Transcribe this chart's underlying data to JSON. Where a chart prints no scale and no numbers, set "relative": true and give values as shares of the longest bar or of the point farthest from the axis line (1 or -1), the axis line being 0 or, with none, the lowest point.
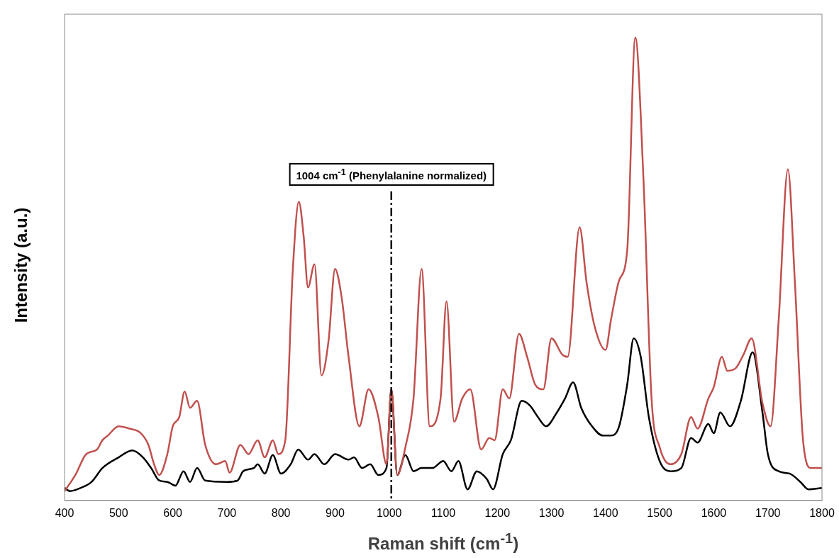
{
  "chart_data": {
    "type": "line",
    "relative": true,
    "xlabel": "Raman shift (cm$^{-1}$)",
    "ylabel": "Intensity  (a.u.)",
    "xlim": [
      400,
      1800
    ],
    "xticks": [
      400,
      500,
      600,
      700,
      800,
      900,
      1000,
      1100,
      1200,
      1300,
      1400,
      1500,
      1600,
      1700,
      1800
    ],
    "grid": false,
    "legend": false,
    "marker": "none",
    "line_style": "solid",
    "ref_lines": [
      {
        "axis": "x",
        "value": 1004,
        "label": "1004 cm$^{-1}$  (Phenylalanine normalized)",
        "color": "#000000",
        "line_style": "dashed"
      }
    ],
    "series": [
      {
        "color": "#c0504d",
        "x": [
          400,
          420,
          440,
          460,
          470,
          480,
          500,
          520,
          540,
          555,
          565,
          575,
          590,
          600,
          612,
          622,
          632,
          645,
          660,
          680,
          697,
          705,
          725,
          740,
          757,
          770,
          785,
          795,
          808,
          822,
          833,
          842,
          850,
          862,
          875,
          888,
          900,
          912,
          925,
          945,
          962,
          980,
          995,
          1004,
          1015,
          1030,
          1045,
          1060,
          1075,
          1095,
          1106,
          1120,
          1135,
          1150,
          1170,
          1185,
          1195,
          1210,
          1222,
          1240,
          1255,
          1270,
          1285,
          1300,
          1320,
          1330,
          1352,
          1365,
          1380,
          1400,
          1410,
          1425,
          1440,
          1455,
          1470,
          1485,
          1500,
          1520,
          1540,
          1558,
          1570,
          1590,
          1600,
          1615,
          1625,
          1640,
          1655,
          1670,
          1690,
          1705,
          1720,
          1737,
          1750,
          1765,
          1780,
          1800
        ],
        "values": [
          0.02,
          0.055,
          0.1,
          0.11,
          0.13,
          0.14,
          0.16,
          0.155,
          0.146,
          0.12,
          0.08,
          0.055,
          0.1,
          0.16,
          0.18,
          0.235,
          0.2,
          0.215,
          0.12,
          0.078,
          0.085,
          0.06,
          0.12,
          0.1,
          0.13,
          0.093,
          0.13,
          0.1,
          0.13,
          0.5,
          0.645,
          0.57,
          0.46,
          0.51,
          0.27,
          0.345,
          0.5,
          0.44,
          0.31,
          0.16,
          0.24,
          0.18,
          0.078,
          0.24,
          0.055,
          0.115,
          0.22,
          0.5,
          0.16,
          0.22,
          0.43,
          0.17,
          0.22,
          0.24,
          0.11,
          0.135,
          0.13,
          0.24,
          0.22,
          0.36,
          0.31,
          0.25,
          0.24,
          0.35,
          0.315,
          0.31,
          0.59,
          0.47,
          0.375,
          0.325,
          0.39,
          0.475,
          0.54,
          1.0,
          0.695,
          0.22,
          0.115,
          0.078,
          0.1,
          0.18,
          0.155,
          0.22,
          0.245,
          0.31,
          0.28,
          0.285,
          0.315,
          0.35,
          0.21,
          0.16,
          0.39,
          0.715,
          0.47,
          0.13,
          0.07,
          0.07
        ]
      },
      {
        "color": "#000000",
        "x": [
          400,
          410,
          430,
          450,
          470,
          500,
          525,
          545,
          560,
          575,
          590,
          605,
          620,
          632,
          645,
          660,
          700,
          720,
          730,
          750,
          757,
          770,
          785,
          800,
          818,
          832,
          850,
          862,
          880,
          900,
          925,
          935,
          950,
          965,
          980,
          995,
          1004,
          1015,
          1030,
          1045,
          1060,
          1080,
          1100,
          1115,
          1128,
          1145,
          1162,
          1180,
          1192,
          1210,
          1225,
          1245,
          1260,
          1275,
          1290,
          1310,
          1325,
          1340,
          1355,
          1375,
          1395,
          1410,
          1425,
          1440,
          1452,
          1465,
          1480,
          1500,
          1520,
          1540,
          1558,
          1570,
          1590,
          1600,
          1612,
          1630,
          1650,
          1672,
          1690,
          1700,
          1720,
          1740,
          1760,
          1775,
          1800
        ],
        "values": [
          0.027,
          0.02,
          0.027,
          0.04,
          0.07,
          0.093,
          0.108,
          0.093,
          0.07,
          0.043,
          0.04,
          0.032,
          0.063,
          0.04,
          0.07,
          0.043,
          0.04,
          0.043,
          0.063,
          0.07,
          0.078,
          0.058,
          0.098,
          0.058,
          0.078,
          0.11,
          0.088,
          0.1,
          0.078,
          0.1,
          0.088,
          0.093,
          0.07,
          0.078,
          0.055,
          0.07,
          0.24,
          0.055,
          0.098,
          0.063,
          0.07,
          0.07,
          0.085,
          0.063,
          0.085,
          0.024,
          0.063,
          0.047,
          0.024,
          0.1,
          0.13,
          0.215,
          0.205,
          0.18,
          0.16,
          0.19,
          0.22,
          0.255,
          0.2,
          0.16,
          0.14,
          0.14,
          0.16,
          0.25,
          0.35,
          0.31,
          0.18,
          0.085,
          0.063,
          0.07,
          0.135,
          0.125,
          0.165,
          0.145,
          0.19,
          0.16,
          0.215,
          0.32,
          0.19,
          0.1,
          0.063,
          0.058,
          0.04,
          0.024,
          0.027
        ]
      }
    ]
  }
}
